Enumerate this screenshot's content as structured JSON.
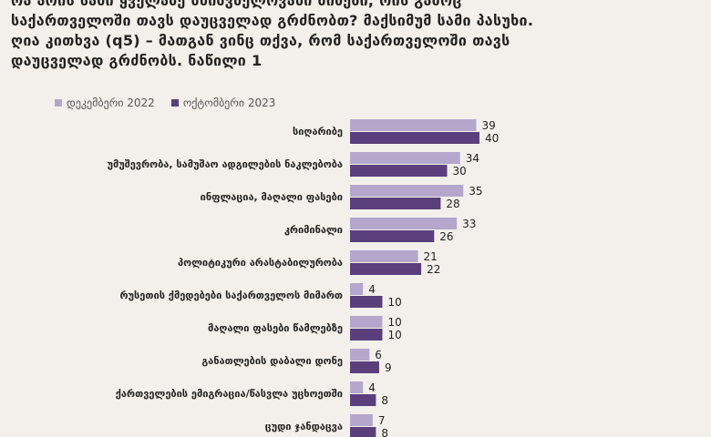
{
  "title_lines": [
    "რა არის სამი ყველაზე მნიშვნელოვანი მიზეზი, რის გამოც",
    "საქართველოში თავს დაუცველად გრძნობთ? მაქსიმუმ სამი პასუხი.",
    "ღია კითხვა (q5) – მათგან ვინც თქვა, რომ საქართველოში თავს",
    "დაუცველად გრძნობს. ნაწილი 1"
  ],
  "colors": {
    "series1": "#b5a6cc",
    "series2": "#5a3f7c",
    "text": "#222222",
    "background": "#f3f0eb"
  },
  "chart_data": {
    "type": "bar",
    "orientation": "horizontal",
    "categories": [
      "სიღარიბე",
      "უმუშევრობა, სამუშაო ადგილების ნაკლებობა",
      "ინფლაცია, მაღალი ფასები",
      "კრიმინალი",
      "პოლიტიკური არასტაბილურობა",
      "რუსეთის ქმედებები საქართველოს მიმართ",
      "მაღალი ფასები წამლებზე",
      "განათლების დაბალი დონე",
      "ქართველების ემიგრაცია/წასვლა უცხოეთში",
      "ცუდი ჯანდაცვა"
    ],
    "series": [
      {
        "name": "დეკემბერი 2022",
        "values": [
          39,
          34,
          35,
          33,
          21,
          4,
          10,
          6,
          4,
          7
        ]
      },
      {
        "name": "ოქტომბერი 2023",
        "values": [
          40,
          30,
          28,
          26,
          22,
          10,
          10,
          9,
          8,
          8
        ]
      }
    ],
    "legend_position": "top-left",
    "grid": false
  }
}
